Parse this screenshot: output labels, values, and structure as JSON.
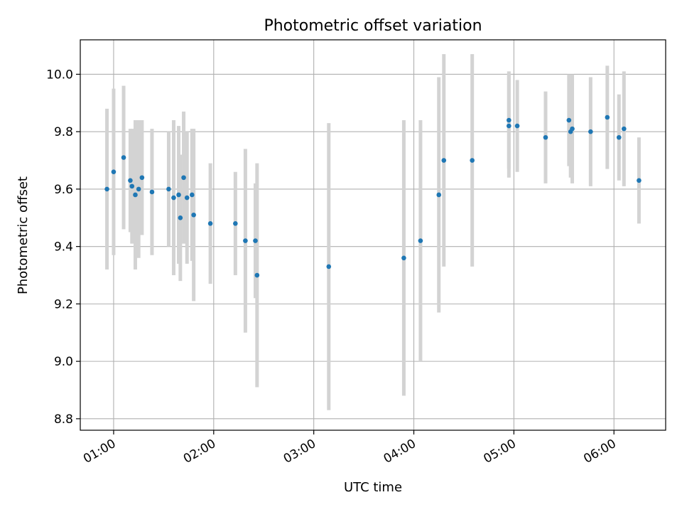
{
  "chart_data": {
    "type": "scatter",
    "title": "Photometric offset variation",
    "xlabel": "UTC time",
    "ylabel": "Photometric offset",
    "x_unit": "UTC time (HH:MM)",
    "xlim": [
      "00:40",
      "06:31"
    ],
    "ylim": [
      8.76,
      10.12
    ],
    "grid": true,
    "x_ticks": [
      "01:00",
      "02:00",
      "03:00",
      "04:00",
      "05:00",
      "06:00"
    ],
    "y_ticks": [
      "8.8",
      "9.0",
      "9.2",
      "9.4",
      "9.6",
      "9.8",
      "10.0"
    ],
    "colors": {
      "point": "#1f77b4",
      "errorbar": "#d3d3d3",
      "grid": "#b0b0b0",
      "axes": "#000000"
    },
    "series": [
      {
        "points": [
          {
            "x": "00:56",
            "y": 9.6,
            "err": 0.28
          },
          {
            "x": "01:00",
            "y": 9.66,
            "err": 0.29
          },
          {
            "x": "01:06",
            "y": 9.71,
            "err": 0.25
          },
          {
            "x": "01:10",
            "y": 9.63,
            "err": 0.18
          },
          {
            "x": "01:11",
            "y": 9.61,
            "err": 0.2
          },
          {
            "x": "01:13",
            "y": 9.58,
            "err": 0.26
          },
          {
            "x": "01:15",
            "y": 9.6,
            "err": 0.24
          },
          {
            "x": "01:17",
            "y": 9.64,
            "err": 0.2
          },
          {
            "x": "01:23",
            "y": 9.59,
            "err": 0.22
          },
          {
            "x": "01:33",
            "y": 9.6,
            "err": 0.2
          },
          {
            "x": "01:36",
            "y": 9.57,
            "err": 0.27
          },
          {
            "x": "01:39",
            "y": 9.58,
            "err": 0.24
          },
          {
            "x": "01:40",
            "y": 9.5,
            "err": 0.22
          },
          {
            "x": "01:42",
            "y": 9.64,
            "err": 0.23
          },
          {
            "x": "01:44",
            "y": 9.57,
            "err": 0.23
          },
          {
            "x": "01:47",
            "y": 9.58,
            "err": 0.23
          },
          {
            "x": "01:48",
            "y": 9.51,
            "err": 0.3
          },
          {
            "x": "01:58",
            "y": 9.48,
            "err": 0.21
          },
          {
            "x": "02:13",
            "y": 9.48,
            "err": 0.18
          },
          {
            "x": "02:19",
            "y": 9.42,
            "err": 0.32
          },
          {
            "x": "02:25",
            "y": 9.42,
            "err": 0.2
          },
          {
            "x": "02:26",
            "y": 9.3,
            "err": 0.39
          },
          {
            "x": "03:09",
            "y": 9.33,
            "err": 0.5
          },
          {
            "x": "03:54",
            "y": 9.36,
            "err": 0.48
          },
          {
            "x": "04:04",
            "y": 9.42,
            "err": 0.42
          },
          {
            "x": "04:15",
            "y": 9.58,
            "err": 0.41
          },
          {
            "x": "04:18",
            "y": 9.7,
            "err": 0.37
          },
          {
            "x": "04:35",
            "y": 9.7,
            "err": 0.37
          },
          {
            "x": "04:57",
            "y": 9.84,
            "err": 0.17
          },
          {
            "x": "04:57",
            "y": 9.82,
            "err": 0.18
          },
          {
            "x": "05:02",
            "y": 9.82,
            "err": 0.16
          },
          {
            "x": "05:19",
            "y": 9.78,
            "err": 0.16
          },
          {
            "x": "05:33",
            "y": 9.84,
            "err": 0.16
          },
          {
            "x": "05:34",
            "y": 9.8,
            "err": 0.16
          },
          {
            "x": "05:35",
            "y": 9.81,
            "err": 0.19
          },
          {
            "x": "05:46",
            "y": 9.8,
            "err": 0.19
          },
          {
            "x": "05:56",
            "y": 9.85,
            "err": 0.18
          },
          {
            "x": "06:03",
            "y": 9.78,
            "err": 0.15
          },
          {
            "x": "06:06",
            "y": 9.81,
            "err": 0.2
          },
          {
            "x": "06:15",
            "y": 9.63,
            "err": 0.15
          }
        ]
      }
    ]
  }
}
